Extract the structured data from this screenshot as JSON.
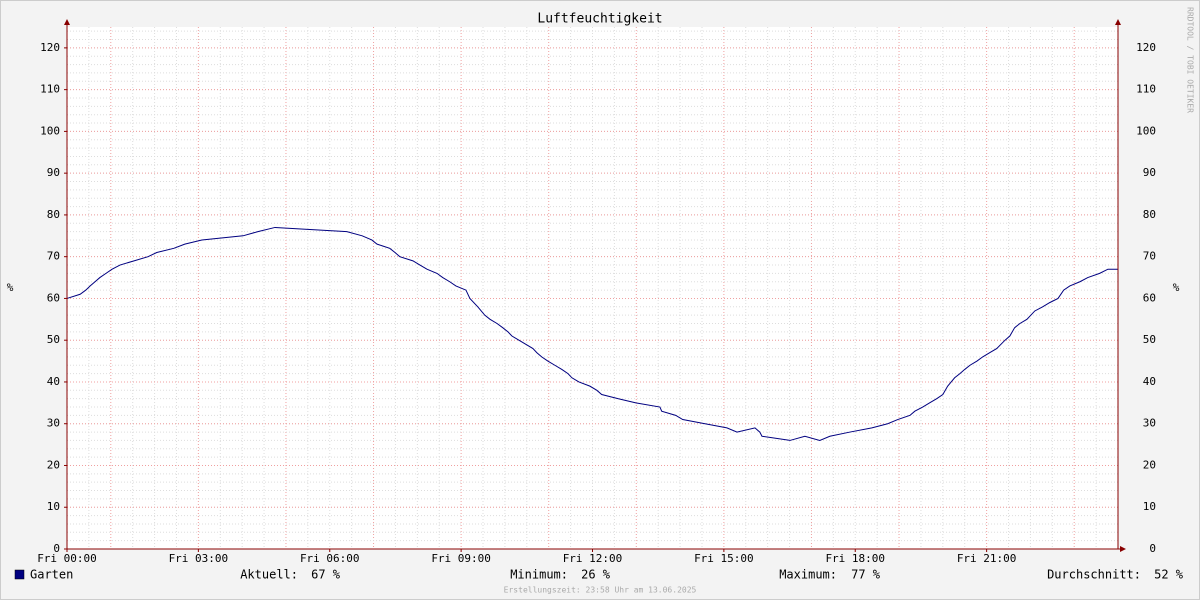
{
  "chart_data": {
    "type": "line",
    "title": "Luftfeuchtigkeit",
    "y_label": "%",
    "watermark": "RRDTOOL / TOBI OETIKER",
    "footer": "Erstellungszeit: 23:58 Uhr am 13.06.2025",
    "xlim": [
      0,
      24
    ],
    "xticks": [
      {
        "value": 0,
        "label": "Fri 00:00"
      },
      {
        "value": 3,
        "label": "Fri 03:00"
      },
      {
        "value": 6,
        "label": "Fri 06:00"
      },
      {
        "value": 9,
        "label": "Fri 09:00"
      },
      {
        "value": 12,
        "label": "Fri 12:00"
      },
      {
        "value": 15,
        "label": "Fri 15:00"
      },
      {
        "value": 18,
        "label": "Fri 18:00"
      },
      {
        "value": 21,
        "label": "Fri 21:00"
      }
    ],
    "ylim": [
      0,
      125
    ],
    "yticks": [
      0,
      10,
      20,
      30,
      40,
      50,
      60,
      70,
      80,
      90,
      100,
      110,
      120
    ],
    "grid": true,
    "x": [
      0.0,
      0.3,
      0.43,
      0.53,
      0.64,
      0.75,
      0.89,
      1.03,
      1.21,
      1.53,
      1.85,
      2.05,
      2.44,
      2.69,
      3.08,
      4.02,
      4.36,
      4.75,
      6.39,
      6.74,
      6.96,
      7.08,
      7.37,
      7.49,
      7.6,
      7.9,
      8.06,
      8.22,
      8.45,
      8.58,
      8.74,
      8.88,
      9.11,
      9.2,
      9.38,
      9.54,
      9.66,
      9.82,
      9.95,
      10.07,
      10.16,
      10.32,
      10.64,
      10.73,
      10.84,
      10.98,
      11.14,
      11.3,
      11.44,
      11.53,
      11.69,
      11.94,
      12.1,
      12.21,
      12.58,
      12.99,
      13.54,
      13.58,
      13.9,
      14.06,
      14.57,
      15.07,
      15.3,
      15.71,
      15.82,
      15.87,
      16.51,
      16.85,
      17.19,
      17.42,
      17.88,
      18.38,
      18.74,
      18.97,
      19.25,
      19.36,
      19.54,
      19.7,
      19.86,
      20.0,
      20.11,
      20.27,
      20.39,
      20.5,
      20.62,
      20.78,
      20.91,
      21.07,
      21.23,
      21.42,
      21.53,
      21.64,
      21.76,
      21.92,
      22.1,
      22.28,
      22.44,
      22.63,
      22.76,
      22.9,
      23.13,
      23.31,
      23.58,
      23.77,
      24.0
    ],
    "series": [
      {
        "name": "Garten",
        "color": "#000080",
        "values": [
          60,
          61,
          62,
          63,
          64,
          65,
          66,
          67,
          68,
          69,
          70,
          71,
          72,
          73,
          74,
          75,
          76,
          77,
          76,
          75,
          74,
          73,
          72,
          71,
          70,
          69,
          68,
          67,
          66,
          65,
          64,
          63,
          62,
          60,
          58,
          56,
          55,
          54,
          53,
          52,
          51,
          50,
          48,
          47,
          46,
          45,
          44,
          43,
          42,
          41,
          40,
          39,
          38,
          37,
          36,
          35,
          34,
          33,
          32,
          31,
          30,
          29,
          28,
          29,
          28,
          27,
          26,
          27,
          26,
          27,
          28,
          29,
          30,
          31,
          32,
          33,
          34,
          35,
          36,
          37,
          39,
          41,
          42,
          43,
          44,
          45,
          46,
          47,
          48,
          50,
          51,
          53,
          54,
          55,
          57,
          58,
          59,
          60,
          62,
          63,
          64,
          65,
          66,
          67,
          67
        ]
      }
    ],
    "stats": [
      {
        "label": "Aktuell:",
        "value": "67 %"
      },
      {
        "label": "Minimum:",
        "value": "26 %"
      },
      {
        "label": "Maximum:",
        "value": "77 %"
      },
      {
        "label": "Durchschnitt:",
        "value": "52 %"
      }
    ]
  }
}
